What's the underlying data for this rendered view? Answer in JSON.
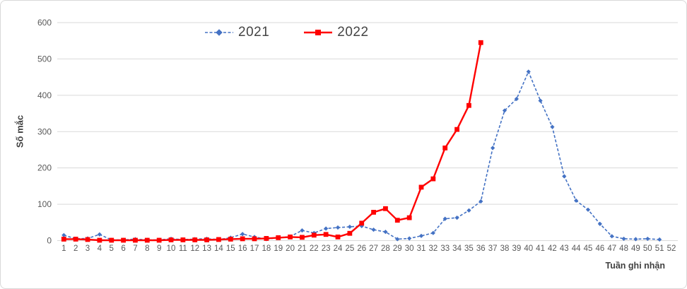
{
  "chart_data": {
    "type": "line",
    "title": "",
    "xlabel": "Tuần ghi nhận",
    "ylabel": "Số mắc",
    "ylim": [
      0,
      600
    ],
    "y_ticks": [
      0,
      100,
      200,
      300,
      400,
      500,
      600
    ],
    "x_ticks": [
      1,
      2,
      3,
      4,
      5,
      6,
      7,
      8,
      9,
      10,
      11,
      12,
      13,
      14,
      15,
      16,
      17,
      18,
      19,
      20,
      21,
      22,
      23,
      24,
      25,
      26,
      27,
      28,
      29,
      30,
      31,
      32,
      33,
      34,
      35,
      36,
      37,
      38,
      39,
      40,
      41,
      42,
      43,
      44,
      45,
      46,
      47,
      48,
      49,
      50,
      51,
      52
    ],
    "grid": "horizontal",
    "gridline_color": "#d9d9d9",
    "tick_label_color": "#595959",
    "axis_title_color": "#404040",
    "legend_position": "top-center",
    "series": [
      {
        "name": "2021",
        "color": "#4472c4",
        "style": "dashed",
        "marker": "diamond",
        "x_start": 1,
        "values": [
          15,
          5,
          6,
          17,
          2,
          2,
          4,
          2,
          2,
          5,
          3,
          4,
          5,
          3,
          8,
          18,
          10,
          4,
          8,
          11,
          28,
          21,
          33,
          36,
          38,
          40,
          30,
          24,
          4,
          6,
          13,
          21,
          60,
          63,
          83,
          108,
          255,
          358,
          390,
          465,
          385,
          313,
          177,
          110,
          85,
          46,
          12,
          5,
          4,
          5,
          3
        ]
      },
      {
        "name": "2022",
        "color": "#ff0000",
        "style": "solid",
        "marker": "square",
        "x_start": 1,
        "values": [
          4,
          4,
          3,
          1,
          1,
          1,
          1,
          1,
          1,
          2,
          2,
          2,
          2,
          3,
          4,
          5,
          5,
          6,
          8,
          10,
          9,
          15,
          17,
          10,
          20,
          48,
          78,
          88,
          56,
          63,
          147,
          170,
          255,
          306,
          372,
          545
        ]
      }
    ]
  }
}
